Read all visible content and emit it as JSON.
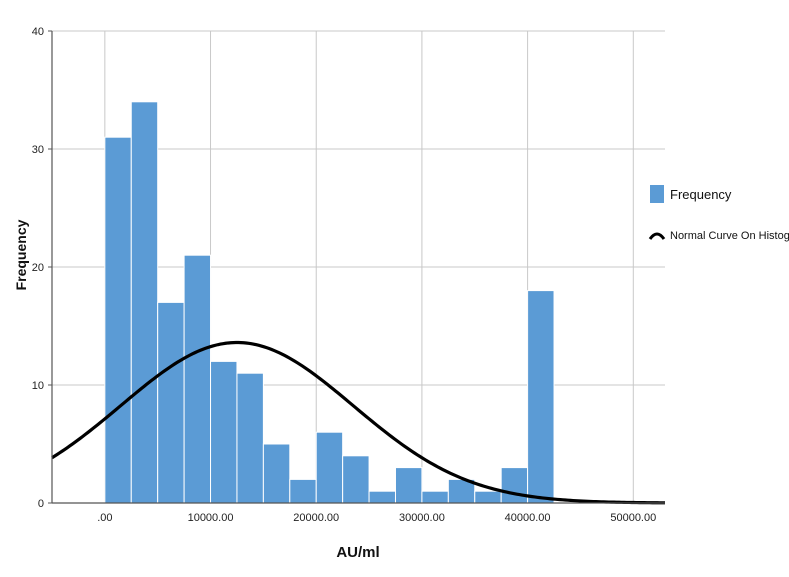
{
  "chart_data": {
    "type": "bar",
    "title": "",
    "xlabel": "AU/ml",
    "ylabel": "Frequency",
    "xlim": [
      -5000,
      53000
    ],
    "ylim": [
      0,
      40
    ],
    "grid": true,
    "bin_width": 2500,
    "bins_start": [
      0,
      2500,
      5000,
      7500,
      10000,
      12500,
      15000,
      17500,
      20000,
      22500,
      25000,
      27500,
      30000,
      32500,
      35000,
      37500,
      40000
    ],
    "values": [
      31,
      34,
      17,
      21,
      12,
      11,
      5,
      2,
      6,
      4,
      1,
      3,
      1,
      2,
      1,
      3,
      18
    ],
    "x_ticks": [
      0,
      10000,
      20000,
      30000,
      40000,
      50000
    ],
    "x_tick_labels": [
      ".00",
      "10000.00",
      "20000.00",
      "30000.00",
      "40000.00",
      "50000.00"
    ],
    "y_ticks": [
      0,
      10,
      20,
      30,
      40
    ],
    "y_tick_labels": [
      "0",
      "10",
      "20",
      "30",
      "40"
    ],
    "normal_curve": {
      "mean": 12500,
      "sd": 11000,
      "peak": 13.6
    },
    "legend": {
      "position": "right",
      "items": [
        {
          "label": "Frequency",
          "color": "#5b9bd5",
          "kind": "bar"
        },
        {
          "label": "Normal Curve On Histogram",
          "color": "#000000",
          "kind": "curve"
        }
      ]
    },
    "colors": {
      "bar": "#5b9bd5",
      "bar_edge": "#ffffff",
      "curve": "#000000",
      "grid": "#c8c8c8",
      "axis": "#555555"
    }
  }
}
